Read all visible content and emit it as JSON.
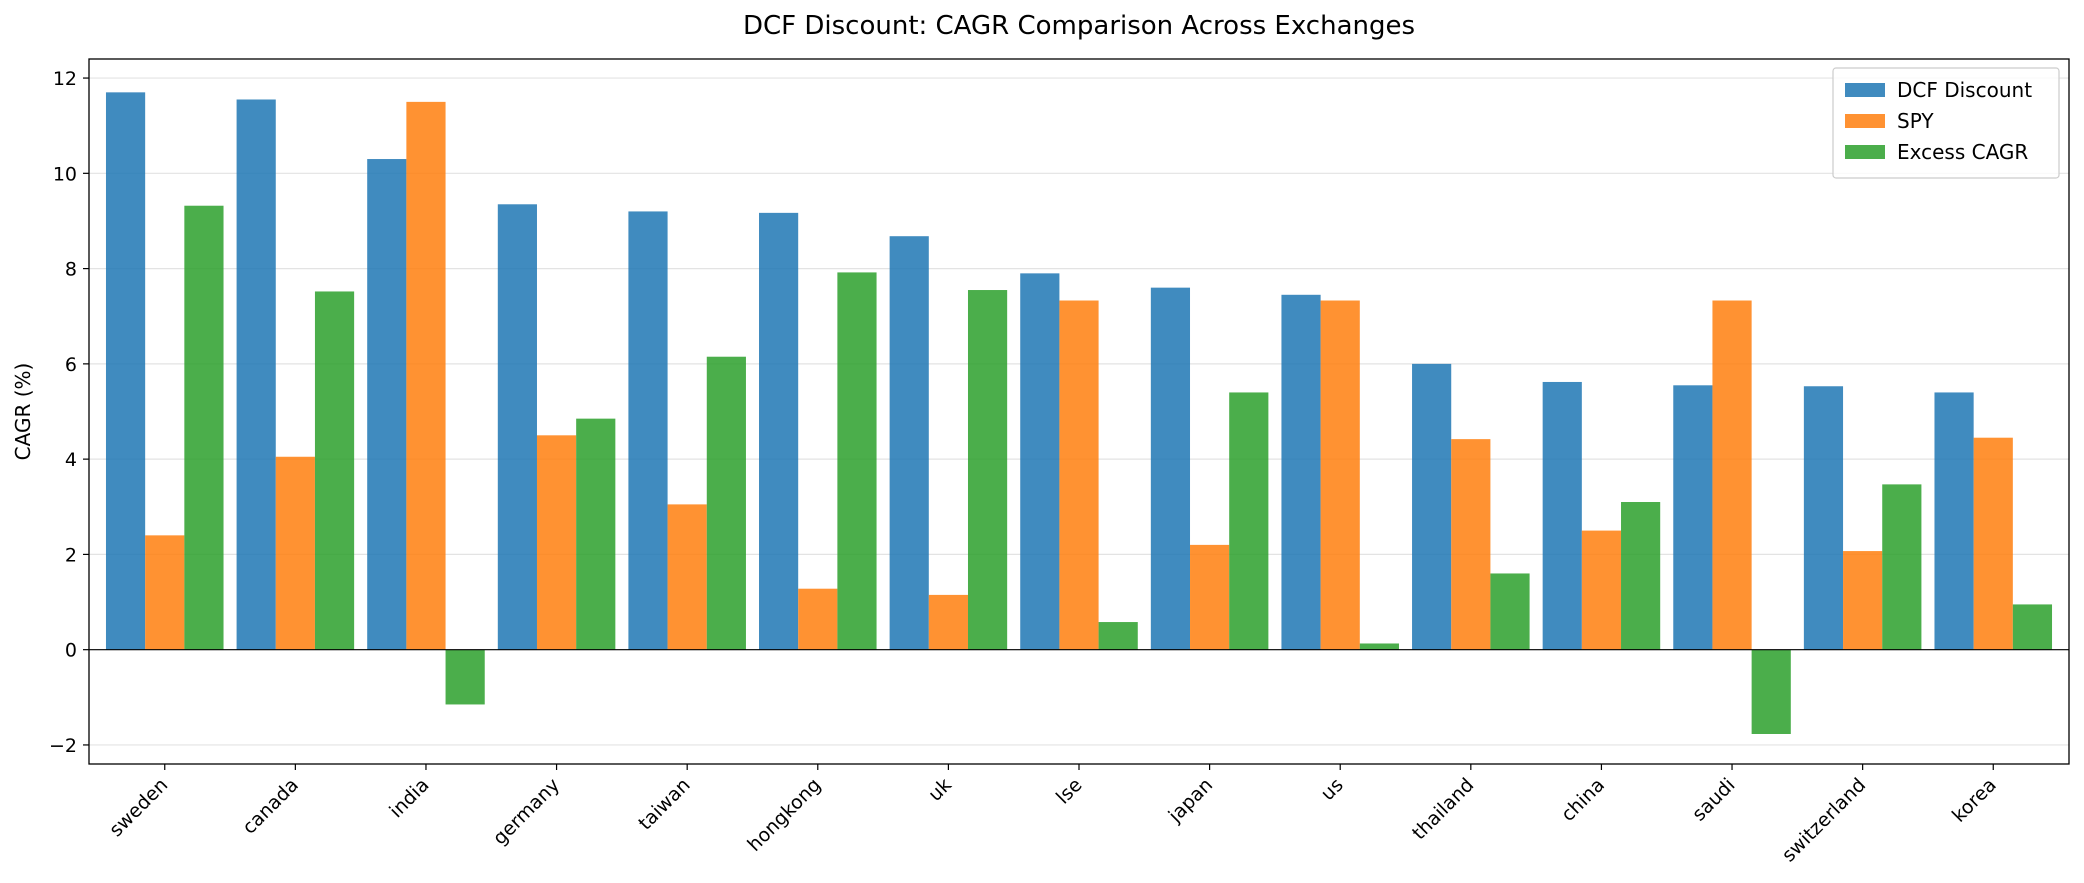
{
  "chart_data": {
    "type": "bar",
    "title": "DCF Discount: CAGR Comparison Across Exchanges",
    "xlabel": "",
    "ylabel": "CAGR (%)",
    "ylim": [
      -2.4,
      12.4
    ],
    "yticks": [
      -2,
      0,
      2,
      4,
      6,
      8,
      10,
      12
    ],
    "ytick_labels": [
      "−2",
      "0",
      "2",
      "4",
      "6",
      "8",
      "10",
      "12"
    ],
    "grid": "y",
    "legend_position": "top-right",
    "categories": [
      "sweden",
      "canada",
      "india",
      "germany",
      "taiwan",
      "hongkong",
      "uk",
      "lse",
      "japan",
      "us",
      "thailand",
      "china",
      "saudi",
      "switzerland",
      "korea"
    ],
    "series": [
      {
        "name": "DCF Discount",
        "color": "#1f77b4",
        "values": [
          11.7,
          11.55,
          10.3,
          9.35,
          9.2,
          9.17,
          8.68,
          7.9,
          7.6,
          7.45,
          6.0,
          5.62,
          5.55,
          5.53,
          5.4
        ]
      },
      {
        "name": "SPY",
        "color": "#ff7f0e",
        "values": [
          2.4,
          4.05,
          11.5,
          4.5,
          3.05,
          1.28,
          1.15,
          7.33,
          2.2,
          7.33,
          4.42,
          2.5,
          7.33,
          2.07,
          4.45
        ]
      },
      {
        "name": "Excess CAGR",
        "color": "#2ca02c",
        "values": [
          9.32,
          7.52,
          -1.15,
          4.85,
          6.15,
          7.92,
          7.55,
          0.58,
          5.4,
          0.13,
          1.6,
          3.1,
          -1.77,
          3.47,
          0.95
        ]
      }
    ]
  }
}
